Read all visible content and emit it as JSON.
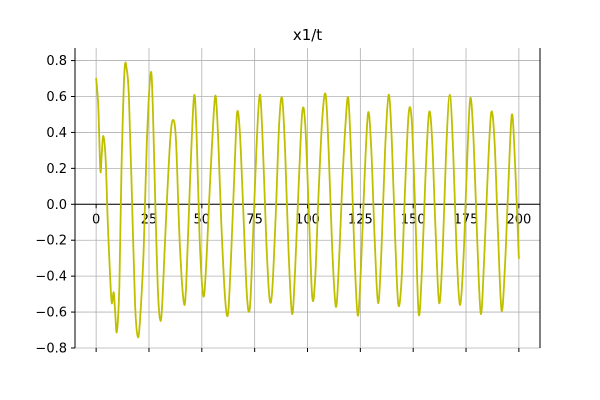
{
  "chart_data": {
    "type": "line",
    "title": "x1/t",
    "xlabel": "",
    "ylabel": "",
    "xlim": [
      -10,
      210
    ],
    "ylim": [
      -0.8,
      0.87
    ],
    "grid": true,
    "x_ticks": [
      0,
      25,
      50,
      75,
      100,
      125,
      150,
      175,
      200
    ],
    "y_ticks": [
      -0.8,
      -0.6,
      -0.4,
      -0.2,
      0.0,
      0.2,
      0.4,
      0.6,
      0.8
    ],
    "x_tick_labels": [
      "0",
      "25",
      "50",
      "75",
      "100",
      "125",
      "150",
      "175",
      "200"
    ],
    "y_tick_labels": [
      "−0.8",
      "−0.6",
      "−0.4",
      "−0.2",
      "0.0",
      "0.2",
      "0.4",
      "0.6",
      "0.8"
    ],
    "series": [
      {
        "color": "#bfbf00",
        "points": [
          [
            0,
            0.7
          ],
          [
            1,
            0.55
          ],
          [
            2,
            0.19
          ],
          [
            2.6,
            0.27
          ],
          [
            3.4,
            0.38
          ],
          [
            4.5,
            0.25
          ],
          [
            5.5,
            -0.1
          ],
          [
            6.6,
            -0.4
          ],
          [
            7.4,
            -0.55
          ],
          [
            8.3,
            -0.49
          ],
          [
            9.0,
            -0.6
          ],
          [
            9.8,
            -0.71
          ],
          [
            11,
            -0.45
          ],
          [
            12,
            0.2
          ],
          [
            13.4,
            0.74
          ],
          [
            14.5,
            0.75
          ],
          [
            15.5,
            0.6
          ],
          [
            16.8,
            0.1
          ],
          [
            18.4,
            -0.55
          ],
          [
            19.8,
            -0.74
          ],
          [
            21,
            -0.6
          ],
          [
            22.5,
            -0.25
          ],
          [
            24,
            0.35
          ],
          [
            25.8,
            0.73
          ],
          [
            26.8,
            0.55
          ],
          [
            28,
            0.0
          ],
          [
            29.3,
            -0.5
          ],
          [
            30.5,
            -0.65
          ],
          [
            31.5,
            -0.5
          ],
          [
            33,
            -0.1
          ],
          [
            35,
            0.35
          ],
          [
            36.4,
            0.47
          ],
          [
            37.8,
            0.35
          ],
          [
            39.5,
            -0.2
          ],
          [
            41.4,
            -0.54
          ],
          [
            42.6,
            -0.45
          ],
          [
            44.5,
            0.15
          ],
          [
            46.3,
            0.6
          ],
          [
            47.5,
            0.4
          ],
          [
            49,
            -0.2
          ],
          [
            50.7,
            -0.51
          ],
          [
            52,
            -0.35
          ],
          [
            53.6,
            0.05
          ],
          [
            55.5,
            0.48
          ],
          [
            56.6,
            0.6
          ],
          [
            57.8,
            0.35
          ],
          [
            59.2,
            -0.1
          ],
          [
            61,
            -0.52
          ],
          [
            62.4,
            -0.61
          ],
          [
            63.8,
            -0.3
          ],
          [
            65.5,
            0.2
          ],
          [
            66.7,
            0.51
          ],
          [
            68,
            0.4
          ],
          [
            69.5,
            0.0
          ],
          [
            71.3,
            -0.5
          ],
          [
            72.7,
            -0.58
          ],
          [
            74,
            -0.25
          ],
          [
            75.8,
            0.3
          ],
          [
            77.4,
            0.61
          ],
          [
            78.8,
            0.35
          ],
          [
            80.5,
            -0.2
          ],
          [
            82,
            -0.52
          ],
          [
            83.3,
            -0.48
          ],
          [
            85,
            -0.05
          ],
          [
            86.6,
            0.45
          ],
          [
            88,
            0.59
          ],
          [
            89.4,
            0.3
          ],
          [
            91,
            -0.25
          ],
          [
            92.7,
            -0.61
          ],
          [
            94.2,
            -0.35
          ],
          [
            95.8,
            0.1
          ],
          [
            97.5,
            0.51
          ],
          [
            98.9,
            0.45
          ],
          [
            100.5,
            0.0
          ],
          [
            102.2,
            -0.51
          ],
          [
            103.6,
            -0.42
          ],
          [
            105.2,
            0.05
          ],
          [
            107,
            0.48
          ],
          [
            108.6,
            0.61
          ],
          [
            110,
            0.3
          ],
          [
            111.7,
            -0.25
          ],
          [
            113.4,
            -0.57
          ],
          [
            114.8,
            -0.35
          ],
          [
            116.4,
            0.1
          ],
          [
            118,
            0.45
          ],
          [
            119.3,
            0.59
          ],
          [
            120.7,
            0.25
          ],
          [
            122.3,
            -0.3
          ],
          [
            123.8,
            -0.62
          ],
          [
            125.3,
            -0.35
          ],
          [
            127,
            0.15
          ],
          [
            128.7,
            0.51
          ],
          [
            130.2,
            0.3
          ],
          [
            131.8,
            -0.2
          ],
          [
            133.4,
            -0.55
          ],
          [
            135,
            -0.25
          ],
          [
            136.7,
            0.3
          ],
          [
            138.4,
            0.61
          ],
          [
            139.9,
            0.35
          ],
          [
            141.5,
            -0.2
          ],
          [
            143,
            -0.56
          ],
          [
            144.6,
            -0.4
          ],
          [
            146.2,
            0.1
          ],
          [
            147.9,
            0.51
          ],
          [
            149.4,
            0.45
          ],
          [
            151,
            -0.05
          ],
          [
            152.6,
            -0.61
          ],
          [
            154.2,
            -0.35
          ],
          [
            155.8,
            0.15
          ],
          [
            157.5,
            0.51
          ],
          [
            159,
            0.35
          ],
          [
            160.6,
            -0.15
          ],
          [
            162.3,
            -0.55
          ],
          [
            164,
            -0.25
          ],
          [
            165.6,
            0.3
          ],
          [
            167.3,
            0.61
          ],
          [
            168.9,
            0.3
          ],
          [
            170.5,
            -0.25
          ],
          [
            172.1,
            -0.56
          ],
          [
            173.8,
            -0.3
          ],
          [
            175.4,
            0.2
          ],
          [
            177,
            0.59
          ],
          [
            178.6,
            0.35
          ],
          [
            180.3,
            -0.2
          ],
          [
            182,
            -0.61
          ],
          [
            183.6,
            -0.3
          ],
          [
            185.2,
            0.15
          ],
          [
            186.9,
            0.51
          ],
          [
            188.5,
            0.35
          ],
          [
            190.1,
            -0.15
          ],
          [
            191.8,
            -0.59
          ],
          [
            193.4,
            -0.35
          ],
          [
            195,
            0.1
          ],
          [
            196.7,
            0.5
          ],
          [
            198.3,
            0.2
          ],
          [
            200,
            -0.3
          ]
        ]
      }
    ]
  }
}
